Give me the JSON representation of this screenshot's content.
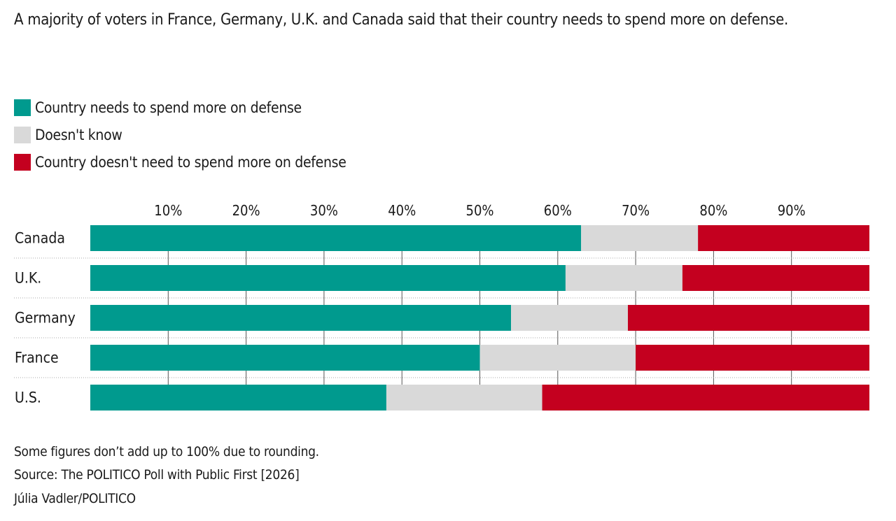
{
  "title": "A majority of voters in France, Germany, U.K. and Canada said that their country needs to spend more on defense.",
  "colors": {
    "more": "#009a8e",
    "dont_know": "#d9d9d9",
    "no": "#c4001f"
  },
  "chart_data": {
    "type": "bar",
    "orientation": "horizontal",
    "stacked": true,
    "categories": [
      "Canada",
      "U.K.",
      "Germany",
      "France",
      "U.S."
    ],
    "series": [
      {
        "name": "Country needs to spend more on defense",
        "values": [
          63,
          61,
          54,
          50,
          38
        ]
      },
      {
        "name": "Doesn't know",
        "values": [
          15,
          15,
          15,
          20,
          20
        ]
      },
      {
        "name": "Country doesn't need to spend more on defense",
        "values": [
          22,
          24,
          31,
          29,
          42
        ]
      }
    ],
    "xlim": [
      0,
      100
    ],
    "xticks": [
      "10%",
      "20%",
      "30%",
      "40%",
      "50%",
      "60%",
      "70%",
      "80%",
      "90%"
    ],
    "legend": "top-left",
    "grid": true
  },
  "footer": {
    "note": "Some figures don’t add up to 100% due to rounding.",
    "source": "Source: The POLITICO Poll with Public First [2026]",
    "credit": "Júlia Vadler/POLITICO"
  }
}
